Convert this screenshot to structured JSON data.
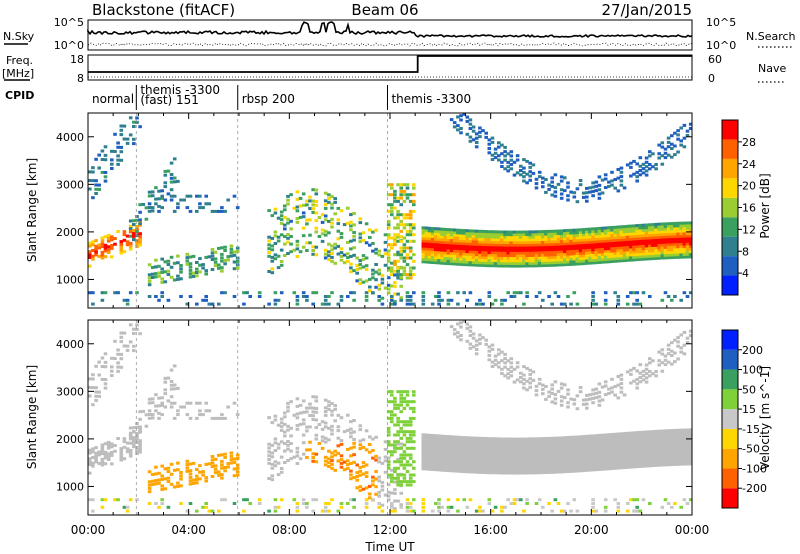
{
  "header": {
    "radar": "Blackstone (fitACF)",
    "beam": "Beam 06",
    "date": "27/Jan/2015"
  },
  "noise_panel": {
    "left_label": "N.Sky",
    "right_label": "N.Search",
    "left_ticks": [
      "10^5",
      "10^0"
    ],
    "right_ticks": [
      "10^5",
      "10^0"
    ]
  },
  "freq_panel": {
    "left_label_1": "Freq.",
    "left_label_2": "[MHz]",
    "right_label": "Nave",
    "left_ticks": [
      "18",
      "8"
    ],
    "right_ticks": [
      "60",
      "0"
    ]
  },
  "cpid": {
    "label": "CPID",
    "segments": [
      {
        "start": 0.0,
        "end": 1.92,
        "lines": [
          "normal"
        ]
      },
      {
        "start": 1.92,
        "end": 5.95,
        "lines": [
          "themis -3300",
          "(fast) 151"
        ]
      },
      {
        "start": 5.95,
        "end": 11.9,
        "lines": [
          "rbsp 200"
        ]
      },
      {
        "start": 11.9,
        "end": 24.0,
        "lines": [
          "themis -3300"
        ]
      }
    ]
  },
  "colors": {
    "power_scale": [
      "#0020ff",
      "#1f5fc0",
      "#2f7f8f",
      "#3aa060",
      "#9acd32",
      "#ffd700",
      "#ffa500",
      "#ff6000",
      "#ff0000"
    ],
    "velocity_scale": [
      "#0020ff",
      "#1f5fc0",
      "#3aa060",
      "#7fd13a",
      "#c8c8c8",
      "#ffd700",
      "#ffa500",
      "#ff6000",
      "#ff0000"
    ],
    "ground_scatter": "#bdbdbd"
  },
  "chart_data": [
    {
      "type": "heatmap",
      "title": "",
      "xlabel": "Time UT",
      "ylabel": "Slant Range [km]",
      "xlim": [
        0,
        24
      ],
      "ylim": [
        400,
        4500
      ],
      "x_tick_labels": [
        "00:00",
        "04:00",
        "08:00",
        "12:00",
        "16:00",
        "20:00",
        "00:00"
      ],
      "y_ticks": [
        1000,
        2000,
        3000,
        4000
      ],
      "colorbar": {
        "label": "Power [dB]",
        "ticks": [
          "4",
          "8",
          "12",
          "16",
          "20",
          "24",
          "28"
        ]
      },
      "features": [
        {
          "name": "evening band",
          "x": [
            0,
            2
          ],
          "range_km": [
            1300,
            1900
          ],
          "value_db": 24
        },
        {
          "name": "night patch",
          "x": [
            2.2,
            6
          ],
          "range_km": [
            1000,
            1800
          ],
          "value_db": 10
        },
        {
          "name": "mid band",
          "x": [
            7.5,
            12.2
          ],
          "range_km": [
            1200,
            2600
          ],
          "value_db": 14
        },
        {
          "name": "main band",
          "x": [
            13.2,
            24
          ],
          "range_km": [
            1400,
            2100
          ],
          "value_db": 26
        },
        {
          "name": "upper arc",
          "x": [
            15.5,
            24
          ],
          "range_km": [
            2800,
            4400
          ],
          "value_db": 6
        }
      ]
    },
    {
      "type": "heatmap",
      "title": "",
      "xlabel": "Time UT",
      "ylabel": "Slant Range [km]",
      "xlim": [
        0,
        24
      ],
      "ylim": [
        400,
        4500
      ],
      "x_tick_labels": [
        "00:00",
        "04:00",
        "08:00",
        "12:00",
        "16:00",
        "20:00",
        "00:00"
      ],
      "y_ticks": [
        1000,
        2000,
        3000,
        4000
      ],
      "colorbar": {
        "label": "Velocity [m s^-1]",
        "ticks": [
          "200",
          "100",
          "50",
          "15",
          "-15",
          "-50",
          "-100",
          "-200"
        ]
      },
      "features": [
        {
          "name": "ground scatter band",
          "x": [
            13.2,
            24
          ],
          "range_km": [
            1400,
            2100
          ],
          "value_ms": 0
        },
        {
          "name": "westward flow",
          "x": [
            2.2,
            6
          ],
          "range_km": [
            800,
            1600
          ],
          "value_ms": -70
        },
        {
          "name": "westward flow",
          "x": [
            8.5,
            11.5
          ],
          "range_km": [
            900,
            1900
          ],
          "value_ms": -80
        }
      ]
    }
  ]
}
